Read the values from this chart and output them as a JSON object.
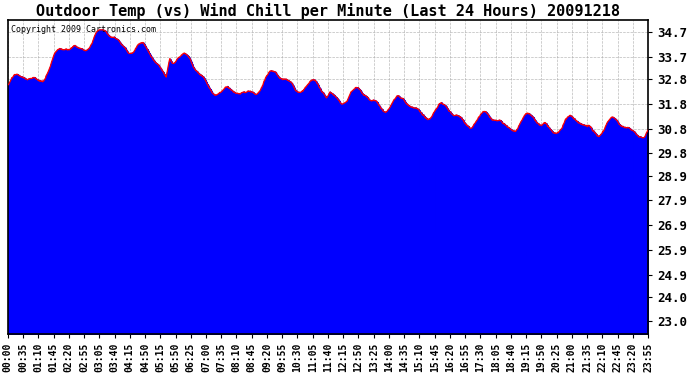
{
  "title": "Outdoor Temp (vs) Wind Chill per Minute (Last 24 Hours) 20091218",
  "copyright_text": "Copyright 2009 Cartronics.com",
  "yticks": [
    23.0,
    24.0,
    24.9,
    25.9,
    26.9,
    27.9,
    28.9,
    29.8,
    30.8,
    31.8,
    32.8,
    33.7,
    34.7
  ],
  "ylim": [
    22.5,
    35.2
  ],
  "xtick_labels": [
    "00:00",
    "00:35",
    "01:10",
    "01:45",
    "02:20",
    "02:55",
    "03:05",
    "03:40",
    "04:15",
    "04:50",
    "05:15",
    "05:50",
    "06:25",
    "07:00",
    "07:35",
    "08:10",
    "08:45",
    "09:20",
    "09:55",
    "10:30",
    "11:05",
    "11:40",
    "12:15",
    "12:50",
    "13:25",
    "14:00",
    "14:35",
    "15:10",
    "15:45",
    "16:20",
    "16:55",
    "17:30",
    "18:05",
    "18:40",
    "19:15",
    "19:50",
    "20:25",
    "21:00",
    "21:35",
    "22:10",
    "22:45",
    "23:20",
    "23:55"
  ],
  "outdoor_temp_color": "#FF0000",
  "wind_chill_color": "#0000FF",
  "background_color": "#FFFFFF",
  "grid_color": "#AAAAAA",
  "title_fontsize": 11,
  "axis_fontsize": 7.0,
  "ytick_fontsize": 9,
  "figsize": [
    6.9,
    3.75
  ],
  "dpi": 100
}
